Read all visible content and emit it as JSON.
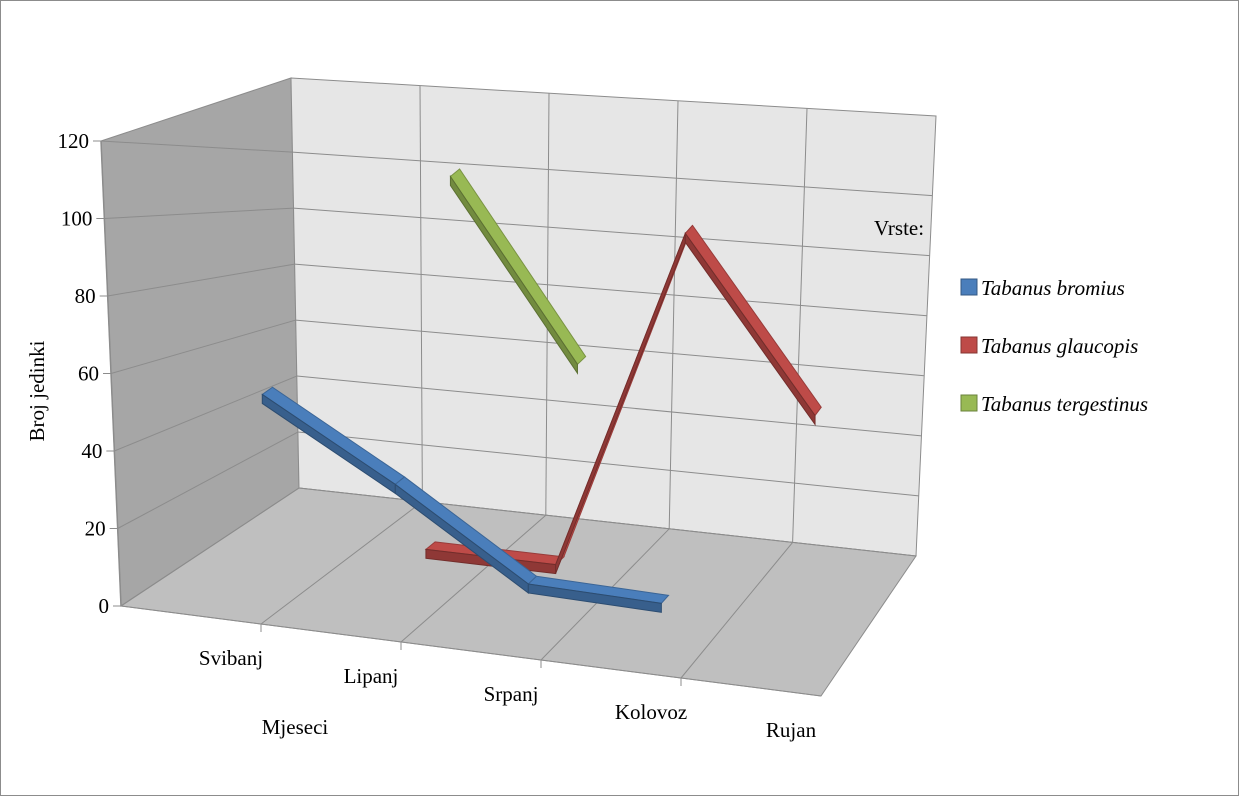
{
  "chart_data": {
    "type": "line",
    "style": "3d-line",
    "title": "",
    "xlabel": "Mjeseci",
    "ylabel": "Broj jedinki",
    "categories": [
      "Svibanj",
      "Lipanj",
      "Srpanj",
      "Kolovoz",
      "Rujan"
    ],
    "ylim": [
      0,
      120
    ],
    "yticks": [
      "0",
      "20",
      "40",
      "60",
      "80",
      "100",
      "120"
    ],
    "grid": true,
    "legend": {
      "title": "Vrste:",
      "placement": "right"
    },
    "series": [
      {
        "name": "Tabanus bromius",
        "color": "#4a7ebb",
        "values": [
          53,
          30,
          4,
          3,
          null
        ]
      },
      {
        "name": "Tabanus glaucopis",
        "color": "#be4b48",
        "values": [
          null,
          2,
          2,
          110,
          58
        ]
      },
      {
        "name": "Tabanus tergestinus",
        "color": "#98b954",
        "values": [
          null,
          112,
          58,
          null,
          null
        ]
      }
    ]
  }
}
